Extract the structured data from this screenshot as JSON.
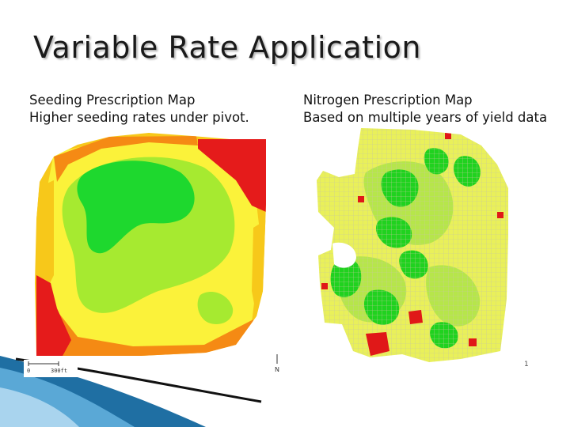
{
  "slide": {
    "title": "Variable Rate Application"
  },
  "left_map": {
    "caption_line1": "Seeding Prescription Map",
    "caption_line2": "Higher seeding rates under pivot.",
    "scale_start": "0",
    "scale_end": "300ft",
    "north_label": "N",
    "zone_colors": {
      "high": "#e51b1b",
      "mid_high": "#f58a14",
      "mid": "#f7c81a",
      "mid_low": "#fbf23a",
      "low_mid": "#a6ea30",
      "low": "#1ed82e"
    }
  },
  "right_map": {
    "caption_line1": "Nitrogen Prescription Map",
    "caption_line2": "Based on multiple years of yield data",
    "north_label": "1",
    "zone_colors": {
      "high": "#e01818",
      "mid": "#e9f05a",
      "low_mid": "#b6e64a",
      "low": "#20d21f",
      "grid": "#c8c8a0"
    }
  }
}
